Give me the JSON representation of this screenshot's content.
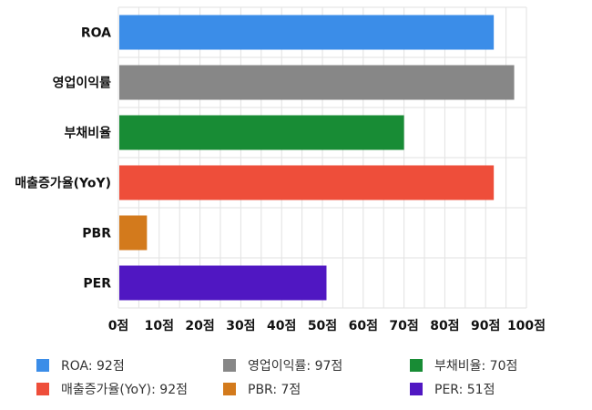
{
  "chart_data": {
    "type": "bar",
    "orientation": "horizontal",
    "categories": [
      "ROA",
      "영업이익률",
      "부채비율",
      "매출증가율(YoY)",
      "PBR",
      "PER"
    ],
    "values": [
      92,
      97,
      70,
      92,
      7,
      51
    ],
    "colors": [
      "#3b8de8",
      "#878787",
      "#188c35",
      "#ee4e3a",
      "#d37a1c",
      "#5017c2"
    ],
    "xlim": [
      0,
      100
    ],
    "xticks": [
      0,
      10,
      20,
      30,
      40,
      50,
      60,
      70,
      80,
      90,
      100
    ],
    "tick_suffix": "점",
    "grid": true,
    "legend_position": "bottom",
    "legend": [
      {
        "label": "ROA: 92점",
        "color": "#3b8de8"
      },
      {
        "label": "영업이익률: 97점",
        "color": "#878787"
      },
      {
        "label": "부채비율: 70점",
        "color": "#188c35"
      },
      {
        "label": "매출증가율(YoY): 92점",
        "color": "#ee4e3a"
      },
      {
        "label": "PBR: 7점",
        "color": "#d37a1c"
      },
      {
        "label": "PER: 51점",
        "color": "#5017c2"
      }
    ]
  }
}
